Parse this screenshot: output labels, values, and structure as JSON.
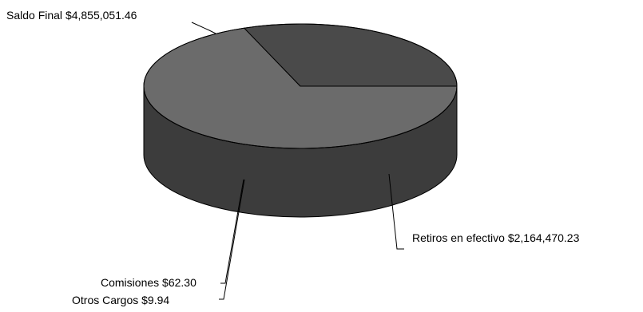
{
  "chart_data": {
    "type": "pie",
    "three_d": true,
    "grid": false,
    "legend": "none",
    "slices": [
      {
        "label": "Saldo Final",
        "value": 4855051.46,
        "value_text": "$4,855,051.46",
        "color": "#6b6b6b"
      },
      {
        "label": "Retiros en efectivo",
        "value": 2164470.23,
        "value_text": "$2,164,470.23",
        "color": "#4a4a4a"
      },
      {
        "label": "Comisiones",
        "value": 62.3,
        "value_text": "$62.30",
        "color": "#4a4a4a"
      },
      {
        "label": "Otros Cargos",
        "value": 9.94,
        "value_text": "$9.94",
        "color": "#4a4a4a"
      }
    ],
    "side_color": "#3c3c3c",
    "edge_color": "#000000"
  }
}
